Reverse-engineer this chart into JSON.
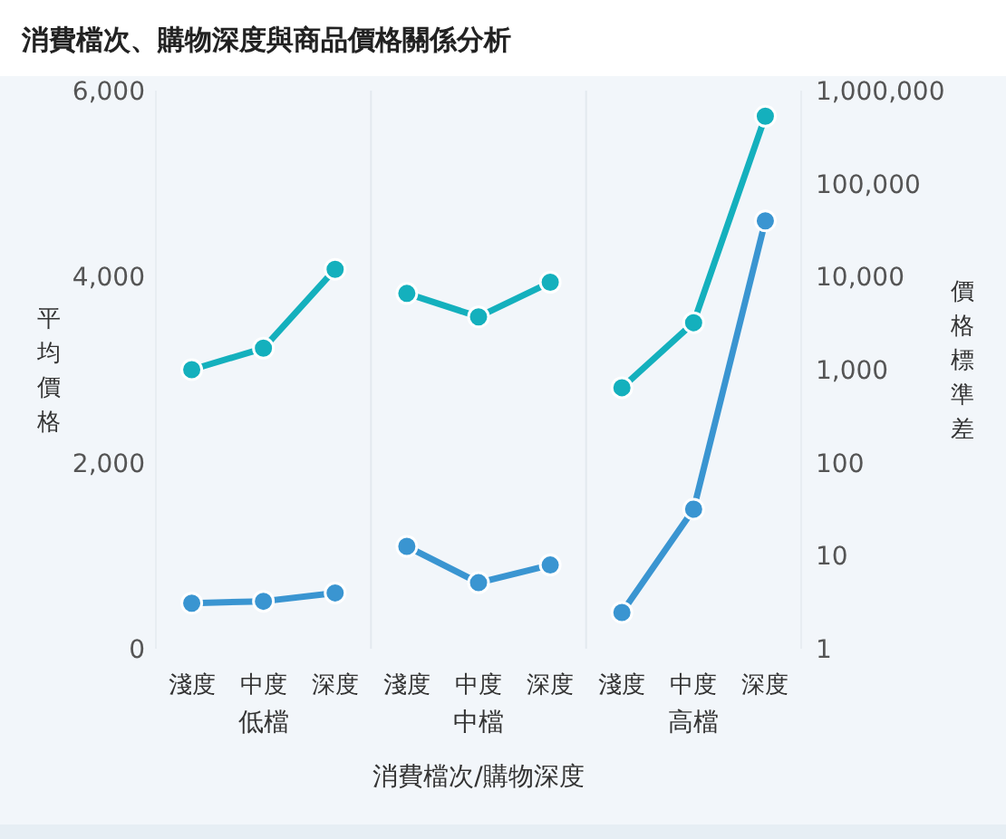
{
  "chart_data": {
    "type": "line",
    "title": "消費檔次、購物深度與商品價格關係分析",
    "xlabel": "消費檔次/購物深度",
    "ylabel": "平均價格",
    "y2label": "價格標準差",
    "categories": [
      "淺度",
      "中度",
      "深度",
      "淺度",
      "中度",
      "深度",
      "淺度",
      "中度",
      "深度"
    ],
    "annotations": [
      "低檔",
      "中檔",
      "高檔"
    ],
    "series": [
      {
        "color": "#3a95d1",
        "values": [
          490,
          510,
          600,
          1100,
          710,
          900,
          390,
          1500,
          4600
        ]
      },
      {
        "color": "#14b0bd",
        "axis": "y2",
        "values": [
          1000,
          1700,
          12000,
          6600,
          3700,
          8700,
          640,
          3200,
          530000
        ]
      }
    ],
    "ylim": [
      0,
      6000
    ],
    "yticks": [
      0,
      {
        "value": 2000,
        "label": "2,000"
      },
      {
        "value": 4000,
        "label": "4,000"
      },
      {
        "value": 6000,
        "label": "6,000"
      }
    ],
    "y2lim": [
      1,
      1000000
    ],
    "y2ticks": [
      1,
      10,
      100,
      {
        "value": 1000,
        "label": "1,000"
      },
      {
        "value": 10000,
        "label": "10,000"
      },
      {
        "value": 100000,
        "label": "100,000"
      },
      {
        "value": 1000000,
        "label": "1,000,000"
      }
    ],
    "log": "y2",
    "grid": false,
    "marker": "circle",
    "line_style": "solid"
  }
}
